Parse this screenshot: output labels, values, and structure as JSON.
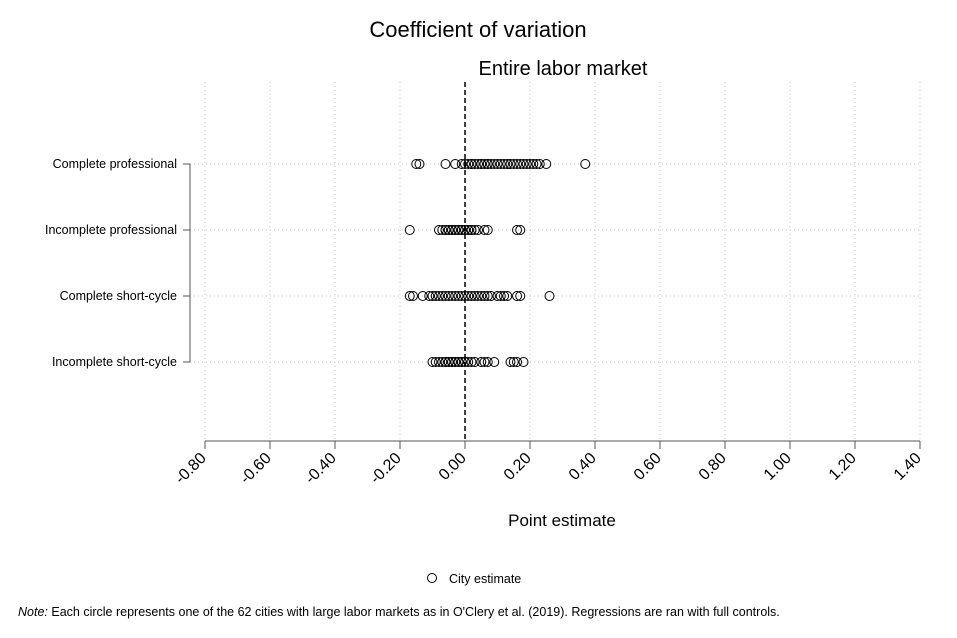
{
  "chart_data": {
    "type": "scatter",
    "title": "Coefficient of variation",
    "subtitle": "Entire labor market",
    "xlabel": "Point estimate",
    "xlim": [
      -0.8,
      1.4
    ],
    "xticks": [
      "-0.80",
      "-0.60",
      "-0.40",
      "-0.20",
      "0.00",
      "0.20",
      "0.40",
      "0.60",
      "0.80",
      "1.00",
      "1.20",
      "1.40"
    ],
    "reference_line_x": 0,
    "grid": true,
    "legend_position": "bottom-center",
    "categories": [
      "Complete professional",
      "Incomplete professional",
      "Complete short-cycle",
      "Incomplete short-cycle"
    ],
    "series": [
      {
        "name": "City estimate",
        "marker": "hollow-circle",
        "points": [
          {
            "category": "Complete professional",
            "values": [
              -0.15,
              -0.14,
              -0.06,
              -0.03,
              -0.01,
              0.0,
              0.01,
              0.02,
              0.02,
              0.03,
              0.04,
              0.05,
              0.05,
              0.06,
              0.07,
              0.07,
              0.08,
              0.09,
              0.1,
              0.11,
              0.12,
              0.13,
              0.14,
              0.15,
              0.16,
              0.17,
              0.18,
              0.19,
              0.2,
              0.21,
              0.22,
              0.23,
              0.25,
              0.37
            ]
          },
          {
            "category": "Incomplete professional",
            "values": [
              -0.17,
              -0.08,
              -0.07,
              -0.06,
              -0.06,
              -0.05,
              -0.05,
              -0.04,
              -0.04,
              -0.03,
              -0.03,
              -0.02,
              -0.02,
              -0.01,
              -0.01,
              0.0,
              0.0,
              0.01,
              0.01,
              0.02,
              0.02,
              0.03,
              0.04,
              0.06,
              0.07,
              0.16,
              0.17
            ]
          },
          {
            "category": "Complete short-cycle",
            "values": [
              -0.17,
              -0.16,
              -0.13,
              -0.11,
              -0.1,
              -0.09,
              -0.08,
              -0.07,
              -0.06,
              -0.05,
              -0.04,
              -0.03,
              -0.02,
              -0.01,
              0.0,
              0.01,
              0.02,
              0.03,
              0.04,
              0.05,
              0.06,
              0.07,
              0.08,
              0.1,
              0.11,
              0.12,
              0.13,
              0.16,
              0.17,
              0.26
            ]
          },
          {
            "category": "Incomplete short-cycle",
            "values": [
              -0.1,
              -0.09,
              -0.08,
              -0.07,
              -0.06,
              -0.06,
              -0.05,
              -0.05,
              -0.04,
              -0.04,
              -0.03,
              -0.03,
              -0.02,
              -0.02,
              -0.01,
              -0.01,
              0.0,
              0.0,
              0.01,
              0.02,
              0.03,
              0.05,
              0.06,
              0.07,
              0.09,
              0.14,
              0.15,
              0.16,
              0.18
            ]
          }
        ]
      }
    ]
  },
  "note": {
    "label": "Note:",
    "text": " Each circle represents one of the 62 cities with large labor markets as in O'Clery et al. (2019). Regressions are ran with full controls."
  }
}
